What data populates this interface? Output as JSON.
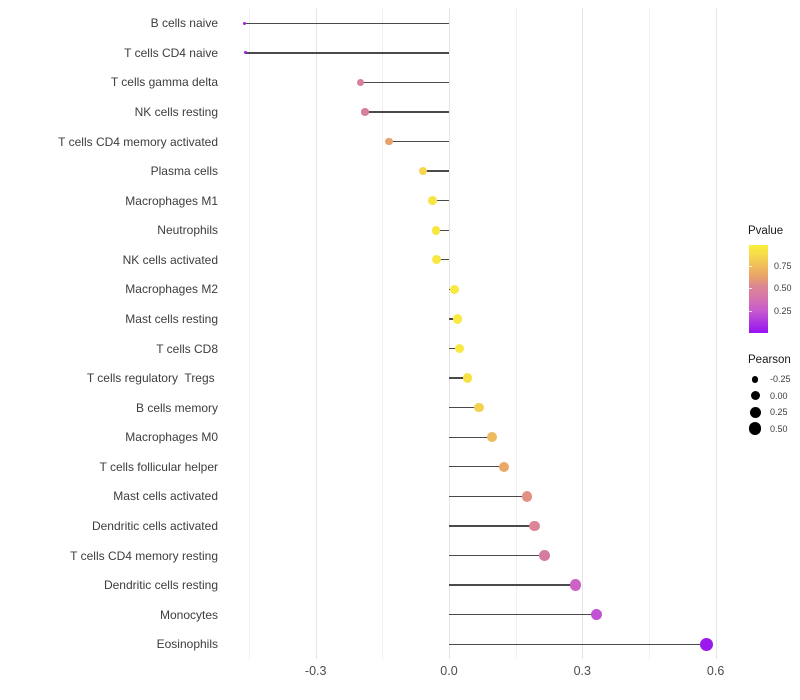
{
  "chart_data": {
    "type": "scatter",
    "variant": "horizontal-lollipop",
    "title": "",
    "xlabel": "",
    "ylabel": "",
    "background": "#FFFFFF",
    "grid": "vertical-only",
    "categories": [
      "B cells naive",
      "T cells CD4 naive",
      "T cells gamma delta",
      "NK cells resting",
      "T cells CD4 memory activated",
      "Plasma cells",
      "Macrophages M1",
      "Neutrophils",
      "NK cells activated",
      "Macrophages M2",
      "Mast cells resting",
      "T cells CD8",
      "T cells regulatory  Tregs ",
      "B cells memory",
      "Macrophages M0",
      "T cells follicular helper",
      "Mast cells activated",
      "Dendritic cells activated",
      "T cells CD4 memory resting",
      "Dendritic cells resting",
      "Monocytes",
      "Eosinophils"
    ],
    "series": [
      {
        "name": "Pearson",
        "values": [
          -0.46,
          -0.458,
          -0.199,
          -0.189,
          -0.135,
          -0.059,
          -0.037,
          -0.029,
          -0.028,
          0.012,
          0.019,
          0.023,
          0.041,
          0.068,
          0.097,
          0.124,
          0.176,
          0.193,
          0.215,
          0.284,
          0.332,
          0.58
        ]
      },
      {
        "name": "Pvalue",
        "values": [
          0.04,
          0.04,
          0.45,
          0.46,
          0.63,
          0.85,
          0.93,
          0.94,
          0.94,
          0.96,
          0.96,
          0.95,
          0.91,
          0.83,
          0.73,
          0.66,
          0.56,
          0.51,
          0.44,
          0.29,
          0.22,
          0.02
        ]
      }
    ],
    "x_axis": {
      "tick_labels": [
        "-0.3",
        "0.0",
        "0.3",
        "0.6"
      ],
      "tick_values": [
        -0.3,
        0.0,
        0.3,
        0.6
      ],
      "minor_tick_values": [
        -0.45,
        -0.15,
        0.15,
        0.45
      ],
      "range": [
        -0.515,
        0.635
      ]
    },
    "size_range": [
      -0.46,
      0.58
    ],
    "legend": {
      "pvalue": {
        "title": "Pvalue",
        "tick_labels": [
          "0.75",
          "0.50",
          "0.25"
        ],
        "tick_values": [
          0.75,
          0.5,
          0.25
        ],
        "bar_range": [
          0.0,
          0.98
        ],
        "gradient_stops": [
          {
            "t": 0.0,
            "color": "#9712F0"
          },
          {
            "t": 0.12,
            "color": "#AE35E2"
          },
          {
            "t": 0.25,
            "color": "#C75BCE"
          },
          {
            "t": 0.42,
            "color": "#D67AA4"
          },
          {
            "t": 0.52,
            "color": "#DC8694"
          },
          {
            "t": 0.62,
            "color": "#E8A06C"
          },
          {
            "t": 0.75,
            "color": "#F0BE5C"
          },
          {
            "t": 0.88,
            "color": "#F6DD48"
          },
          {
            "t": 1.0,
            "color": "#F9F03C"
          }
        ]
      },
      "pearson": {
        "title": "Pearson",
        "tick_labels": [
          "-0.25",
          "0.00",
          "0.25",
          "0.50"
        ],
        "tick_values": [
          -0.25,
          0.0,
          0.25,
          0.5
        ],
        "dot_color": "#000000"
      }
    },
    "style": {
      "stick_color": "#4a4a4a",
      "grid_major_color": "#E5E5E5",
      "grid_minor_color": "#F0F0F0",
      "axis_text_color": "#4d4d4d"
    }
  }
}
